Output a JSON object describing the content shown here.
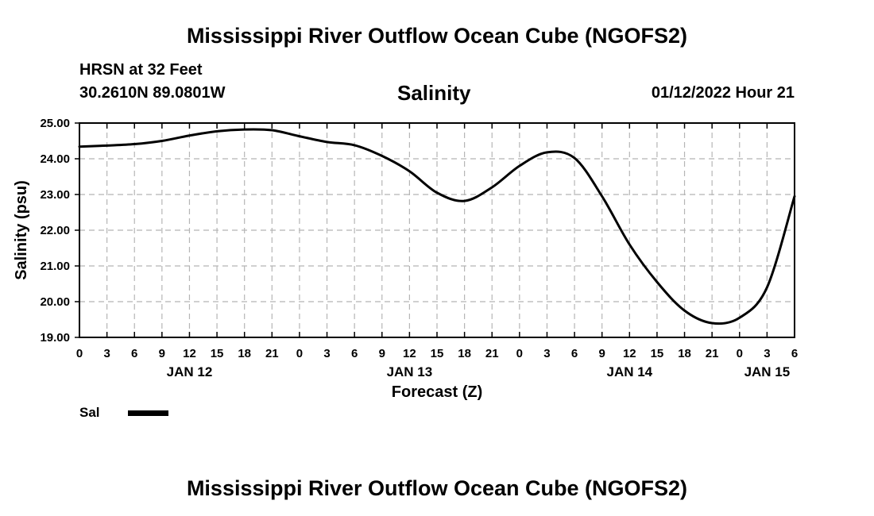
{
  "header": {
    "title": "Mississippi River Outflow Ocean Cube (NGOFS2)",
    "station": "HRSN at 32 Feet",
    "coords": "30.2610N  89.0801W",
    "variable": "Salinity",
    "datetime": "01/12/2022 Hour 21"
  },
  "footer": {
    "title": "Mississippi River Outflow Ocean Cube (NGOFS2)"
  },
  "legend": {
    "label": "Sal",
    "color": "#000000"
  },
  "chart_data": {
    "type": "line",
    "title": "Salinity",
    "xlabel": "Forecast (Z)",
    "ylabel": "Salinity (psu)",
    "xlim": [
      0,
      78
    ],
    "ylim": [
      19.0,
      25.0
    ],
    "grid": true,
    "x_tick_step_hours": 3,
    "x_tick_labels": [
      "0",
      "3",
      "6",
      "9",
      "12",
      "15",
      "18",
      "21",
      "0",
      "3",
      "6",
      "9",
      "12",
      "15",
      "18",
      "21",
      "0",
      "3",
      "6",
      "9",
      "12",
      "15",
      "18",
      "21",
      "0",
      "3",
      "6"
    ],
    "y_ticks": [
      19.0,
      20.0,
      21.0,
      22.0,
      23.0,
      24.0,
      25.0
    ],
    "y_tick_labels": [
      "19.00",
      "20.00",
      "21.00",
      "22.00",
      "23.00",
      "24.00",
      "25.00"
    ],
    "date_labels": [
      {
        "hour": 12,
        "label": "JAN 12"
      },
      {
        "hour": 36,
        "label": "JAN 13"
      },
      {
        "hour": 60,
        "label": "JAN 14"
      },
      {
        "hour": 75,
        "label": "JAN 15"
      }
    ],
    "series": [
      {
        "name": "Sal",
        "color": "#000000",
        "x": [
          0,
          3,
          6,
          9,
          12,
          15,
          18,
          21,
          24,
          27,
          30,
          33,
          36,
          39,
          42,
          45,
          48,
          51,
          54,
          57,
          60,
          63,
          66,
          69,
          72,
          75,
          78
        ],
        "y": [
          24.34,
          24.37,
          24.41,
          24.5,
          24.65,
          24.77,
          24.82,
          24.8,
          24.63,
          24.47,
          24.38,
          24.08,
          23.65,
          23.05,
          22.82,
          23.2,
          23.8,
          24.18,
          24.02,
          22.95,
          21.6,
          20.55,
          19.75,
          19.4,
          19.55,
          20.4,
          22.95
        ]
      }
    ]
  }
}
